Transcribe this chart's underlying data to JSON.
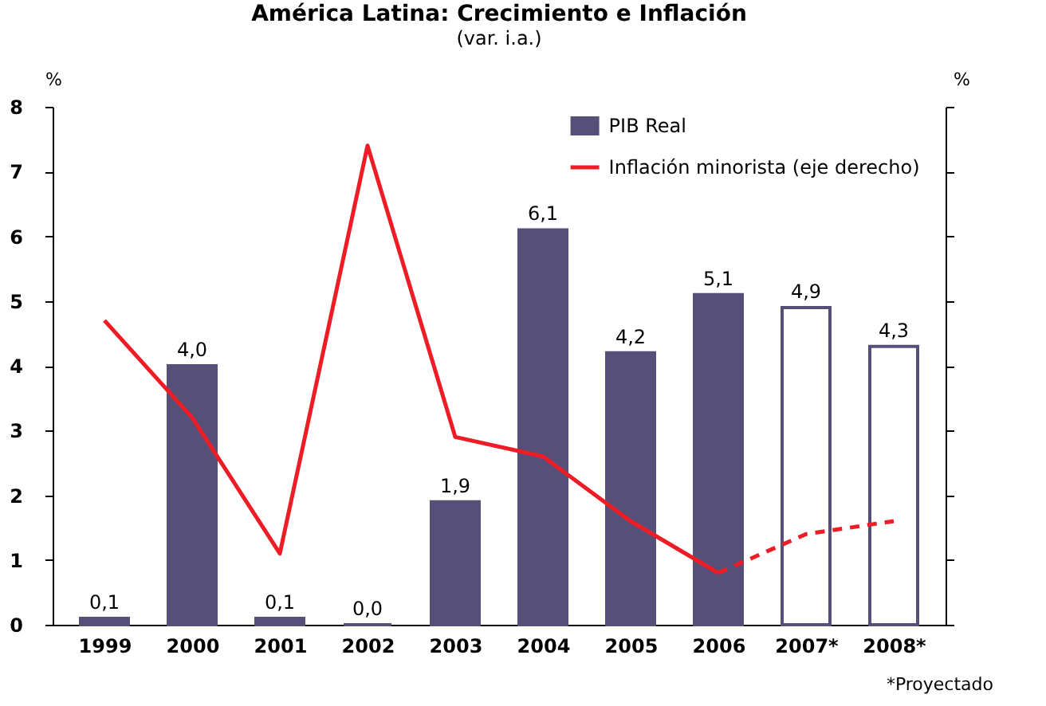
{
  "chart_data": {
    "type": "bar",
    "title": "América Latina: Crecimiento e Inflación",
    "subtitle": "(var. i.a.)",
    "ylabel": "%",
    "y2label": "%",
    "categories": [
      "1999",
      "2000",
      "2001",
      "2002",
      "2003",
      "2004",
      "2005",
      "2006",
      "2007*",
      "2008*"
    ],
    "series": [
      {
        "name": "PIB Real",
        "color": "#565078",
        "colors": [
          "#565078",
          "#565078",
          "#565078",
          "#565078",
          "#565078",
          "#565078",
          "#565078",
          "#565078",
          "#ffffff",
          "#ffffff"
        ],
        "values": [
          0.1,
          4.0,
          0.1,
          0.0,
          1.9,
          6.1,
          4.2,
          5.1,
          4.9,
          4.3
        ],
        "value_labels": [
          "0,1",
          "4,0",
          "0,1",
          "0,0",
          "1,9",
          "6,1",
          "4,2",
          "5,1",
          "4,9",
          "4,3"
        ]
      },
      {
        "name": "Inflación minorista (eje derecho)",
        "type": "line",
        "color": "#ee1c25",
        "line_style": "solid",
        "values": [
          4.7,
          3.2,
          1.1,
          7.4,
          2.9,
          2.6,
          1.6,
          0.8,
          null,
          null
        ]
      },
      {
        "type": "line",
        "color": "#ee1c25",
        "line_style": "dashed",
        "values": [
          null,
          null,
          null,
          null,
          null,
          null,
          null,
          0.8,
          1.4,
          1.6
        ]
      }
    ],
    "ylim": [
      0,
      8
    ],
    "yticks": [
      0,
      1,
      2,
      3,
      4,
      5,
      6,
      7,
      8
    ],
    "grid": false,
    "legend": "top right",
    "marker": "none",
    "annotations": [
      "*Proyectado"
    ]
  }
}
